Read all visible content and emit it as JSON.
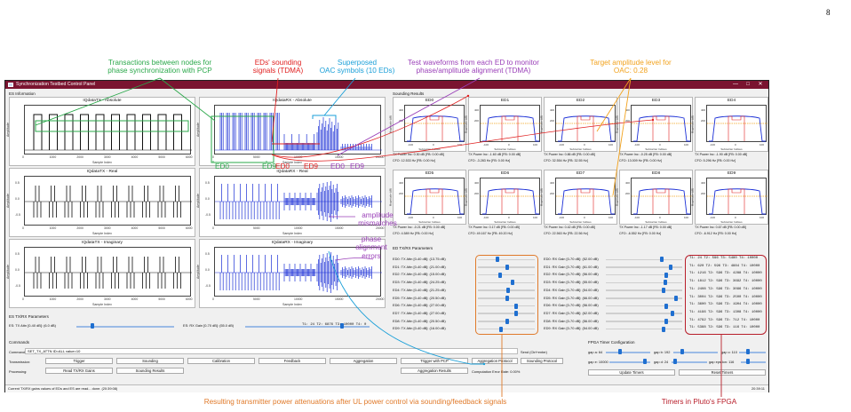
{
  "page_number": "8",
  "annotations": {
    "transactions": "Transactions between nodes for\nphase synchronization with PCP",
    "sounding": "EDs' sounding\nsignals (TDMA)",
    "superposed": "Superposed\nOAC symbols (10 EDs)",
    "testwave": "Test waveforms from each ED to monitor\nphase/amplitude alignment (TDMA)",
    "target": "Target amplitude level for\nOAC: 0.28",
    "amp_mis": "amplitude\nmismatches",
    "phase_err": "phase\nalignment\nerrors",
    "bottom_left": "Resulting transmitter power attenuations after UL power control via sounding/feedback signals",
    "bottom_right": "Timers in Pluto's FPGA",
    "ed0_a": "ED0",
    "ed9_a": "ED9",
    "ed0_b": "ED0",
    "ed9_b": "ED9",
    "ed0_c": "ED0",
    "ed9_c": "ED9"
  },
  "window": {
    "title": "Synchronization Testbed Control Panel",
    "min": "—",
    "max": "□",
    "close": "✕"
  },
  "sections": {
    "es_info": "ES Information",
    "sounding_results": "Sounding Results",
    "ed_params": "ED TX/RX Parameters",
    "es_params": "ES TX/RX Parameters",
    "commands": "Commands",
    "fpga": "FPGA Timer Configuration"
  },
  "plots": {
    "tx_abs": {
      "title": "IQdataTX - Absolute",
      "ylabel": "Amplitude",
      "xlabel": "Sample Index",
      "xticks": [
        "0",
        "1000",
        "2000",
        "3000",
        "4000",
        "5000",
        "6000"
      ]
    },
    "rx_abs": {
      "title": "IQdataRX - Absolute",
      "ylabel": "Amplitude",
      "xlabel": "Sample Index",
      "xticks": [
        "0",
        "5000",
        "10000",
        "15000",
        "20000"
      ]
    },
    "tx_real": {
      "title": "IQdataTX - Real",
      "ylabel": "Amplitude",
      "xlabel": "Sample Index",
      "xticks": [
        "0",
        "1000",
        "2000",
        "3000",
        "4000",
        "5000",
        "6000"
      ],
      "yticks": [
        "0.5",
        "0.0",
        "-0.5"
      ]
    },
    "rx_real": {
      "title": "IQdataRX - Real",
      "ylabel": "Amplitude",
      "xlabel": "Sample Index",
      "xticks": [
        "0",
        "5000",
        "10000",
        "15000",
        "20000"
      ],
      "yticks": [
        "0.5",
        "0.0",
        "-0.5"
      ]
    },
    "tx_imag": {
      "title": "IQdataTX - Imaginary",
      "ylabel": "Amplitude",
      "xlabel": "Sample Index",
      "xticks": [
        "0",
        "1000",
        "2000",
        "3000",
        "4000",
        "5000",
        "6000"
      ],
      "yticks": [
        "0.5",
        "0.0",
        "-0.5"
      ]
    },
    "rx_imag": {
      "title": "IQdataRX - Imaginary",
      "ylabel": "Amplitude",
      "xlabel": "Sample Index",
      "xticks": [
        "0",
        "5000",
        "10000",
        "15000",
        "20000"
      ],
      "yticks": [
        "0.5",
        "0.0",
        "-0.5"
      ]
    }
  },
  "sounding": [
    {
      "ed": "ED0",
      "l1": "TX Power Inc: 0.30 dB [FB: 0.00 dB]",
      "l2": "CFO: 12.533 Hz [FB: 0.00 Hz]"
    },
    {
      "ed": "ED1",
      "l1": "TX Power Inc: -1.60 dB [FB: 0.00 dB]",
      "l2": "CFO: -3.283 Hz [FB: 0.00 Hz]"
    },
    {
      "ed": "ED2",
      "l1": "TX Power Inc: 0.86 dB [FB: 0.00 dB]",
      "l2": "CFO: 32.554 Hz [FB: 32.55 Hz]"
    },
    {
      "ed": "ED3",
      "l1": "TX Power Inc: -0.25 dB [FB: 0.00 dB]",
      "l2": "CFO: 13.009 Hz [FB: 0.00 Hz]"
    },
    {
      "ed": "ED4",
      "l1": "TX Power Inc: -1.90 dB [FB: 0.00 dB]",
      "l2": "CFO: 5.296 Hz [FB: 0.00 Hz]"
    },
    {
      "ed": "ED5",
      "l1": "TX Power Inc: -0.21 dB [FB: 0.00 dB]",
      "l2": "CFO: 4.589 Hz [FB: 0.00 Hz]"
    },
    {
      "ed": "ED6",
      "l1": "TX Power Inc: 0.17 dB [FB: 0.00 dB]",
      "l2": "CFO: 49.167 Hz [FB: 49.20 Hz]"
    },
    {
      "ed": "ED7",
      "l1": "TX Power Inc: 0.42 dB [FB: 0.00 dB]",
      "l2": "CFO: 22.563 Hz [FB: 22.56 Hz]"
    },
    {
      "ed": "ED8",
      "l1": "TX Power Inc: -1.17 dB [FB: 0.00 dB]",
      "l2": "CFO: -6.552 Hz [FB: 0.00 Hz]"
    },
    {
      "ed": "ED9",
      "l1": "TX Power Inc: 0.67 dB [FB: 0.00 dB]",
      "l2": "CFO: -6.912 Hz [FB: 0.00 Hz]"
    }
  ],
  "sounding_axis": {
    "xlabel": "Subcarrier Indices",
    "ylabel": "Magnitude (dB)",
    "xticks": [
      "-100",
      "0",
      "100"
    ],
    "yticks": [
      "400",
      "200"
    ]
  },
  "tx_rows": [
    "ED0: TX Attn [0-40 dB]: (13.75 dB)",
    "ED1: TX Attn [0-40 dB]: (21.00 dB)",
    "ED2: TX Attn [0-40 dB]: (15.00 dB)",
    "ED3: TX Attn [0-40 dB]: (24.25 dB)",
    "ED4: TX Attn [0-40 dB]: (21.25 dB)",
    "ED5: TX Attn [0-40 dB]: (20.50 dB)",
    "ED6: TX Attn [0-40 dB]: (27.00 dB)",
    "ED7: TX Attn [0-40 dB]: (27.00 dB)",
    "ED8: TX Attn [0-40 dB]: (20.50 dB)",
    "ED9: TX Attn [0-40 dB]: (16.00 dB)"
  ],
  "tx_levels": [
    0.34,
    0.52,
    0.38,
    0.61,
    0.53,
    0.51,
    0.68,
    0.68,
    0.51,
    0.4
  ],
  "rx_rows": [
    "ED0: RX Gain [0-70 dB]: (52.00 dB)",
    "ED1: RX Gain [0-70 dB]: (61.00 dB)",
    "ED2: RX Gain [0-70 dB]: (56.00 dB)",
    "ED3: RX Gain [0-70 dB]: (55.00 dB)",
    "ED4: RX Gain [0-70 dB]: (54.00 dB)",
    "ED5: RX Gain [0-70 dB]: (66.00 dB)",
    "ED6: RX Gain [0-70 dB]: (56.00 dB)",
    "ED7: RX Gain [0-70 dB]: (62.00 dB)",
    "ED8: RX Gain [0-70 dB]: (56.00 dB)",
    "ED9: RX Gain [0-70 dB]: (54.00 dB)"
  ],
  "rx_levels": [
    0.74,
    0.87,
    0.8,
    0.79,
    0.77,
    0.94,
    0.8,
    0.89,
    0.8,
    0.77
  ],
  "timers": [
    "T1:  24  T2:  596 T3:  5480 T4: 10000",
    "T1:  620 T2:  596 T3:  4884 T4: 10000",
    "T1: 1216 T2:  596 T3:  4288 T4: 10000",
    "T1: 1812 T2:  596 T3:  3692 T4: 10000",
    "T1: 2408 T2:  596 T3:  3096 T4: 10000",
    "T1: 3004 T2:  596 T3:  2500 T4: 10000",
    "T1: 3600 T2:  596 T3:  1904 T4: 10000",
    "T1: 4196 T2:  596 T3:  1308 T4: 10000",
    "T1: 4792 T2:  596 T3:   712 T4: 10000",
    "T1: 5388 T2:  596 T3:   116 T4: 10000"
  ],
  "es": {
    "tx_label": "ES: TX Attn [0-40 dB]: (6.0 dB)",
    "rx_label": "ES: RX Gain [0-70 dB]: (55.0 dB)",
    "timers": "T1:  24  T2:  6876 T3:  10000 T4:  0",
    "tx_level": 0.15,
    "rx_level": 0.79
  },
  "cmd": {
    "label": "Commands:",
    "value": "SET_TX_ATTN ID=ALL value=10",
    "send": "Send (Ctrl+enter)"
  },
  "rows": {
    "transmission": "Transmission:",
    "processing": "Processing:"
  },
  "buttons": {
    "trigger": "Trigger",
    "sounding": "Sounding",
    "calibration": "Calibration",
    "feedback": "Feedback",
    "aggregation": "Aggregation",
    "trigger_pcp": "Trigger with PCP",
    "agg_protocol": "Aggregation Protocol",
    "sounding_protocol": "Sounding Protocol",
    "read_gains": "Read TX/RX Gains",
    "sounding_results": "Sounding Results",
    "agg_results": "Aggregation Results",
    "update_timers": "Update Timers",
    "reset_timers": "Reset Timers"
  },
  "comp_error": "Computation Error Rate: 0.00%",
  "fpga": {
    "gap_a": "gap a: 64",
    "gap_b": "gap b: 192",
    "gap_c": "gap c: 110",
    "gap_e": "gap e: 10000",
    "gap_d": "gap d: 24",
    "gap_epsilon": "gap epsilon: 116"
  },
  "status": {
    "left": "Current TX/RX gains values of EDs and ES are read... done. (20:39:08)",
    "right": "20:39:11"
  },
  "colors": {
    "title": "#7a1430",
    "green": "#2aa84a",
    "red": "#e02020",
    "cyan": "#1a9fd8",
    "purple": "#9a3fb8",
    "orange": "#f2a21d",
    "darkorange": "#e07a2a",
    "timerred": "#b81e2a",
    "blue": "#1b2fd6"
  }
}
